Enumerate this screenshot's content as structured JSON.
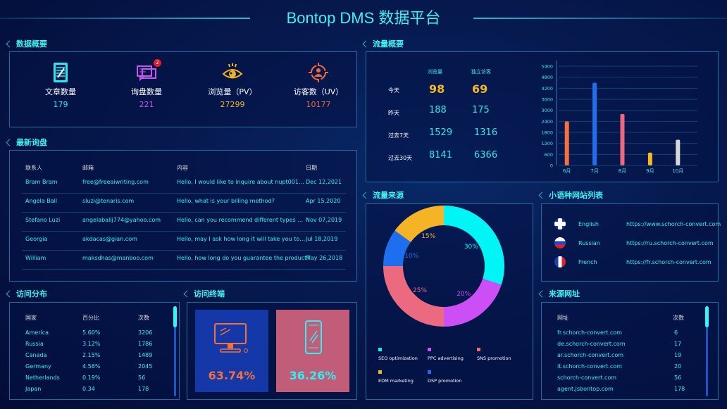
{
  "header": {
    "title": "Bontop DMS 数据平台"
  },
  "overview": {
    "title": "数据概要",
    "items": [
      {
        "label": "文章数量",
        "value": "179",
        "icon": "document-edit-icon",
        "color": "#2ee6f0"
      },
      {
        "label": "询盘数量",
        "value": "221",
        "icon": "chat-bubbles-icon",
        "color": "#c855f0",
        "badge": "2"
      },
      {
        "label": "浏览量（PV）",
        "value": "27299",
        "icon": "eye-icon",
        "color": "#f5b220"
      },
      {
        "label": "访客数（UV）",
        "value": "10177",
        "icon": "visitor-target-icon",
        "color": "#f06a3c"
      }
    ]
  },
  "inquiries": {
    "title": "最新询盘",
    "columns": [
      "联系人",
      "邮箱",
      "内容",
      "日期"
    ],
    "rows": [
      [
        "Bram Bram",
        "free@freeaiwriting.com",
        "Hello, I would like to inquire about nupt001…",
        "Dec 12,2021"
      ],
      [
        "Angela Ball",
        "sluzi@tenaris.com",
        "Hello, what is your billing method?",
        "Apr 15,2020"
      ],
      [
        "Stefano Luzi",
        "angelaballj774@yahoo.com",
        "Hello, can you recommend different types …",
        "Nov 07,2019"
      ],
      [
        "Georgia",
        "akdacas@gian.com",
        "Hello, may I ask how long it will take you to…",
        "Jul 18,2019"
      ],
      [
        "William",
        "maksdhas@manboo.com",
        "Hello, how long do you guarantee the product?",
        "May 26,2018"
      ]
    ]
  },
  "traffic": {
    "title": "流量概要",
    "columns": [
      "浏览量",
      "独立访客"
    ],
    "rows": [
      {
        "label": "今天",
        "pv": "98",
        "uv": "69"
      },
      {
        "label": "昨天",
        "pv": "188",
        "uv": "175"
      },
      {
        "label": "过去7天",
        "pv": "1529",
        "uv": "1316"
      },
      {
        "label": "过去30天",
        "pv": "8141",
        "uv": "6366"
      }
    ]
  },
  "chart_data": [
    {
      "type": "bar",
      "categories": [
        "6月",
        "7月",
        "8月",
        "9月",
        "10月"
      ],
      "values": [
        2400,
        4500,
        2800,
        700,
        1400
      ],
      "colors": [
        "#f5703c",
        "#1e6ef0",
        "#ec6a80",
        "#f5b820",
        "#d8d8d8"
      ],
      "ylim": [
        0,
        5400
      ],
      "yticks": [
        "0",
        "600",
        "1200",
        "1800",
        "2400",
        "3000",
        "3600",
        "4200",
        "4800",
        "5400"
      ],
      "grid": true
    },
    {
      "type": "pie",
      "title": "流量来源",
      "series": [
        {
          "name": "SEO optimization",
          "value": 30,
          "label": "30%",
          "color": "#00f6f6"
        },
        {
          "name": "PPC advertising",
          "value": 20,
          "label": "20%",
          "color": "#cc4ef5"
        },
        {
          "name": "SNS promotion",
          "value": 25,
          "label": "25%",
          "color": "#ec6a80"
        },
        {
          "name": "DSP promotion",
          "value": 10,
          "label": "10%",
          "color": "#1e6ef0"
        },
        {
          "name": "EDM marketing",
          "value": 15,
          "label": "15%",
          "color": "#f5b425"
        }
      ],
      "legend": "bottom",
      "legend_order": [
        "SEO optimization",
        "PPC advertising",
        "SNS promotion",
        "EDM marketing",
        "DSP promotion"
      ]
    }
  ],
  "languages": {
    "title": "小语种网站列表",
    "rows": [
      {
        "name": "English",
        "url": "https://www.schorch-convert.com",
        "icon": "uk-flag-icon"
      },
      {
        "name": "Russian",
        "url": "https://ru.schorch-convert.com",
        "icon": "russia-flag-icon"
      },
      {
        "name": "French",
        "url": "https://fr.schorch-convert.com",
        "icon": "france-flag-icon"
      }
    ]
  },
  "visits": {
    "title": "访问分布",
    "columns": [
      "国家",
      "百分比",
      "次数"
    ],
    "rows": [
      [
        "America",
        "5.60%",
        "3206"
      ],
      [
        "Russia",
        "3.12%",
        "1786"
      ],
      [
        "Canada",
        "2.15%",
        "1489"
      ],
      [
        "Germany",
        "4.56%",
        "2045"
      ],
      [
        "Netherlands",
        "0.19%",
        "56"
      ],
      [
        "Japan",
        "0.34",
        "178"
      ]
    ]
  },
  "terminals": {
    "title": "访问终端",
    "desktop": "63.74%",
    "mobile": "36.26%",
    "desktop_color": "#f5703c",
    "mobile_color": "#2ef2f2"
  },
  "sources": {
    "title": "来源网址",
    "columns": [
      "网址",
      "次数"
    ],
    "rows": [
      [
        "fr.schorch-convert.com",
        "6"
      ],
      [
        "de.schorch-convert.com",
        "17"
      ],
      [
        "ar.schorch-convert.com",
        "19"
      ],
      [
        "it.schorch-convert.com",
        "20"
      ],
      [
        "schorch-convert.com",
        "56"
      ],
      [
        "agent.jsbontop.com",
        "178"
      ]
    ]
  }
}
